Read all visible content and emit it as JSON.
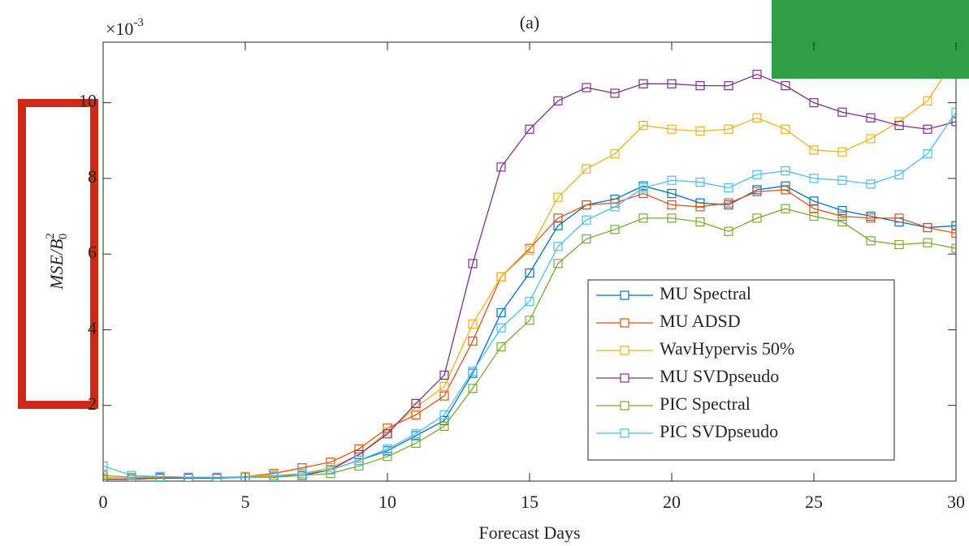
{
  "chart_data": {
    "type": "line",
    "title": "(a)",
    "xlabel": "Forecast Days",
    "ylabel": "MSE/B",
    "ylabel_sub": "0",
    "ylabel_sup": "2",
    "y_multiplier_base": "×10",
    "y_multiplier_exp": "-3",
    "x": [
      0,
      1,
      2,
      3,
      4,
      5,
      6,
      7,
      8,
      9,
      10,
      11,
      12,
      13,
      14,
      15,
      16,
      17,
      18,
      19,
      20,
      21,
      22,
      23,
      24,
      25,
      26,
      27,
      28,
      29,
      30
    ],
    "xlim": [
      0,
      30
    ],
    "xticks": [
      0,
      5,
      10,
      15,
      20,
      25,
      30
    ],
    "ylim": [
      0,
      11.6
    ],
    "yticks": [
      2,
      4,
      6,
      8,
      10
    ],
    "legend": "lower right",
    "series": [
      {
        "name": "MU Spectral",
        "color": "#0072bd",
        "values": [
          0.05,
          0.05,
          0.08,
          0.08,
          0.08,
          0.1,
          0.12,
          0.15,
          0.3,
          0.55,
          0.8,
          1.2,
          1.6,
          2.85,
          4.45,
          5.5,
          6.75,
          7.3,
          7.45,
          7.8,
          7.6,
          7.35,
          7.3,
          7.7,
          7.8,
          7.4,
          7.15,
          7.0,
          6.85,
          6.7,
          6.75
        ]
      },
      {
        "name": "MU ADSD",
        "color": "#d95319",
        "values": [
          0.05,
          0.05,
          0.08,
          0.08,
          0.08,
          0.12,
          0.2,
          0.35,
          0.5,
          0.85,
          1.4,
          1.75,
          2.25,
          3.7,
          5.4,
          6.15,
          6.95,
          7.3,
          7.35,
          7.6,
          7.3,
          7.25,
          7.35,
          7.65,
          7.7,
          7.2,
          7.0,
          6.95,
          6.95,
          6.7,
          6.55
        ]
      },
      {
        "name": "WavHypervis 50%",
        "color": "#edb120",
        "values": [
          0.1,
          0.08,
          0.1,
          0.1,
          0.1,
          0.12,
          0.15,
          0.2,
          0.35,
          0.7,
          1.3,
          1.95,
          2.5,
          4.15,
          5.4,
          6.1,
          7.5,
          8.25,
          8.65,
          9.4,
          9.3,
          9.25,
          9.3,
          9.6,
          9.3,
          8.75,
          8.7,
          9.05,
          9.5,
          10.05,
          11.2
        ]
      },
      {
        "name": "MU SVDpseudo",
        "color": "#7e2f8e",
        "values": [
          0.05,
          0.05,
          0.08,
          0.08,
          0.08,
          0.1,
          0.12,
          0.15,
          0.3,
          0.7,
          1.25,
          2.05,
          2.8,
          5.75,
          8.3,
          9.3,
          10.05,
          10.4,
          10.25,
          10.5,
          10.5,
          10.45,
          10.45,
          10.75,
          10.45,
          10.0,
          9.75,
          9.6,
          9.4,
          9.3,
          9.5
        ]
      },
      {
        "name": "PIC Spectral",
        "color": "#77ac30",
        "values": [
          0.15,
          0.1,
          0.12,
          0.1,
          0.1,
          0.1,
          0.1,
          0.15,
          0.2,
          0.4,
          0.65,
          1.0,
          1.45,
          2.45,
          3.55,
          4.25,
          5.75,
          6.4,
          6.65,
          6.95,
          6.95,
          6.85,
          6.6,
          6.95,
          7.2,
          7.0,
          6.85,
          6.35,
          6.25,
          6.3,
          6.15
        ]
      },
      {
        "name": "PIC SVDpseudo",
        "color": "#4dbeee",
        "values": [
          0.4,
          0.15,
          0.12,
          0.1,
          0.1,
          0.1,
          0.12,
          0.2,
          0.3,
          0.55,
          0.85,
          1.25,
          1.75,
          2.9,
          4.05,
          4.75,
          6.2,
          6.9,
          7.25,
          7.75,
          7.95,
          7.9,
          7.75,
          8.1,
          8.2,
          8.0,
          7.95,
          7.85,
          8.1,
          8.65,
          9.75
        ]
      }
    ]
  }
}
